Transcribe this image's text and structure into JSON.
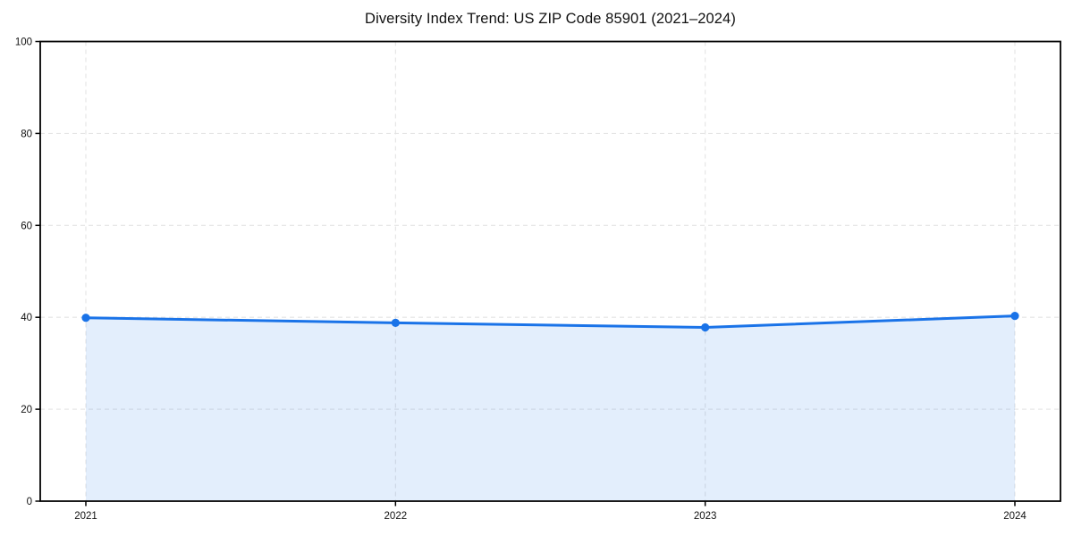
{
  "page": {
    "background_color": "#ffffff"
  },
  "chart_data": {
    "type": "area",
    "title": "Diversity Index Trend: US ZIP Code 85901 (2021–2024)",
    "x": [
      2021,
      2022,
      2023,
      2024
    ],
    "xtick_labels": [
      "2021",
      "2022",
      "2023",
      "2024"
    ],
    "values": [
      39.9,
      38.8,
      37.8,
      40.3
    ],
    "xlabel": "",
    "ylabel": "",
    "ylim": [
      0,
      100
    ],
    "yticks": [
      0,
      20,
      40,
      60,
      80,
      100
    ],
    "ytick_labels": [
      "0",
      "20",
      "40",
      "60",
      "80",
      "100"
    ],
    "grid": true,
    "grid_style": "dashed",
    "legend_position": "none",
    "line_color": "#1a73e8",
    "marker_color": "#1a73e8",
    "fill_color": "rgba(26,115,232,0.12)",
    "grid_color": "#e4e4e4",
    "axis_color": "#000000",
    "tick_label_color": "#111111",
    "title_color": "#111111"
  }
}
